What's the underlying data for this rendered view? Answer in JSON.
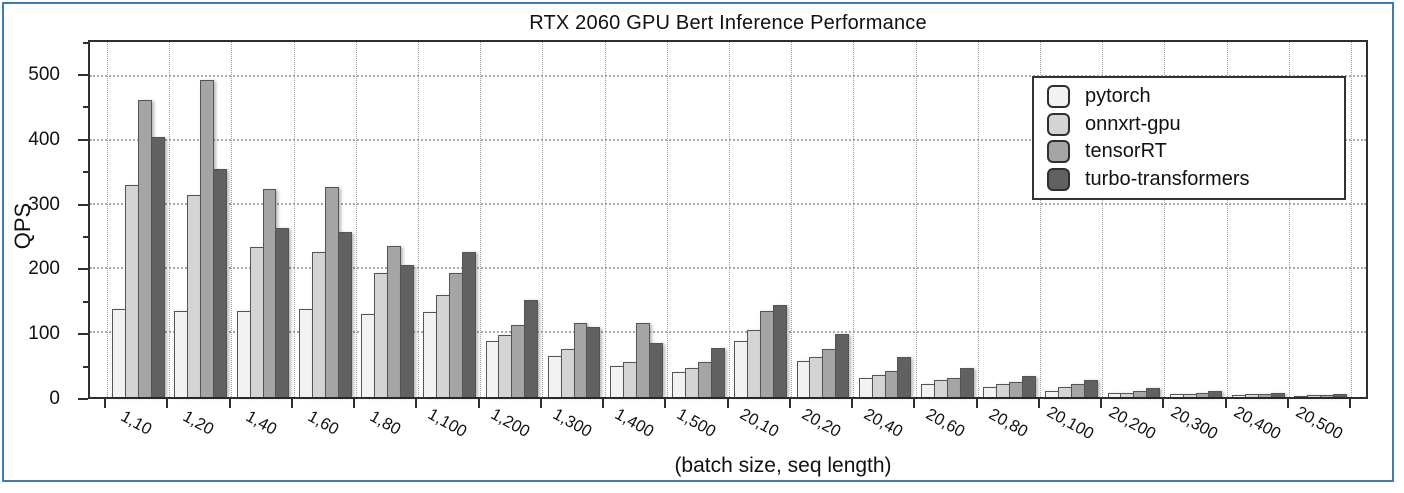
{
  "frame": {
    "border_color": "#3c7db3",
    "background": "#ffffff"
  },
  "chart_data": {
    "type": "bar",
    "title": "RTX 2060 GPU Bert Inference Performance",
    "xlabel": "(batch size, seq length)",
    "ylabel": "QPS",
    "ylim": [
      0,
      554
    ],
    "yticks": [
      0,
      100,
      200,
      300,
      400,
      500
    ],
    "ytick_minor": [
      50,
      150,
      250,
      350,
      450,
      550
    ],
    "grid": "dotted",
    "legend_position": "upper-right",
    "categories": [
      "1,10",
      "1,20",
      "1,40",
      "1,60",
      "1,80",
      "1,100",
      "1,200",
      "1,300",
      "1,400",
      "1,500",
      "20,10",
      "20,20",
      "20,40",
      "20,60",
      "20,80",
      "20,100",
      "20,200",
      "20,300",
      "20,400",
      "20,500"
    ],
    "series": [
      {
        "name": "pytorch",
        "color": "#f2f2f2",
        "values": [
          137,
          134,
          134,
          137,
          129,
          132,
          87,
          64,
          48,
          39,
          87,
          56,
          29,
          21,
          16,
          10,
          6,
          4,
          3,
          2
        ]
      },
      {
        "name": "onnxrt-gpu",
        "color": "#d4d4d4",
        "values": [
          331,
          316,
          234,
          227,
          194,
          159,
          97,
          75,
          55,
          45,
          104,
          62,
          34,
          26,
          20,
          15,
          7,
          5,
          4,
          3
        ]
      },
      {
        "name": "tensorRT",
        "color": "#a5a5a5",
        "values": [
          463,
          494,
          324,
          327,
          235,
          193,
          112,
          115,
          115,
          55,
          135,
          75,
          41,
          30,
          24,
          20,
          9,
          6,
          4,
          3
        ]
      },
      {
        "name": "turbo-transformers",
        "color": "#616161",
        "values": [
          405,
          356,
          264,
          257,
          206,
          227,
          152,
          110,
          85,
          77,
          143,
          98,
          62,
          45,
          33,
          27,
          14,
          9,
          7,
          5
        ]
      }
    ]
  }
}
